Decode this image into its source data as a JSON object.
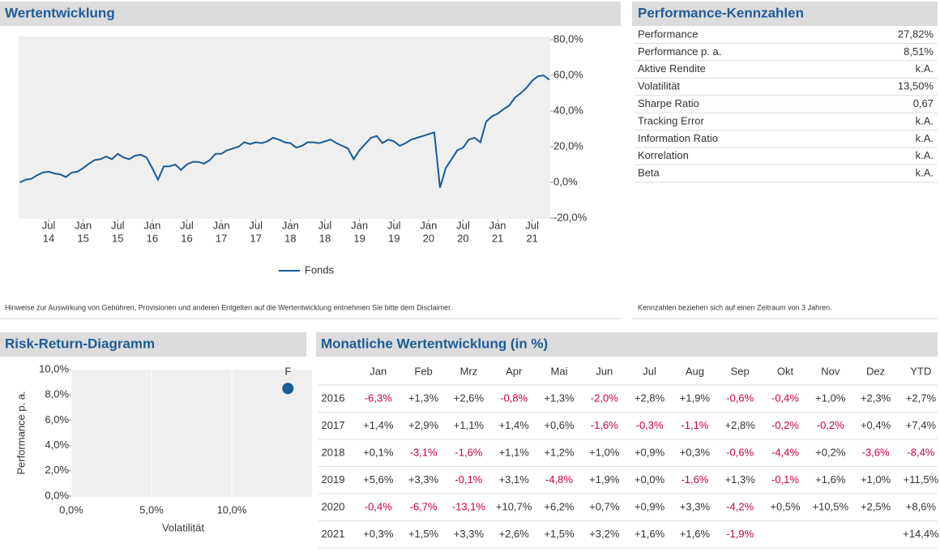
{
  "chart_data": [
    {
      "type": "line",
      "title": "Wertentwicklung",
      "x": [
        "2014-02",
        "2014-03",
        "2014-04",
        "2014-05",
        "2014-06",
        "2014-07",
        "2014-08",
        "2014-09",
        "2014-10",
        "2014-11",
        "2014-12",
        "2015-01",
        "2015-02",
        "2015-03",
        "2015-04",
        "2015-05",
        "2015-06",
        "2015-07",
        "2015-08",
        "2015-09",
        "2015-10",
        "2015-11",
        "2015-12",
        "2016-01",
        "2016-02",
        "2016-03",
        "2016-04",
        "2016-05",
        "2016-06",
        "2016-07",
        "2016-08",
        "2016-09",
        "2016-10",
        "2016-11",
        "2016-12",
        "2017-01",
        "2017-02",
        "2017-03",
        "2017-04",
        "2017-05",
        "2017-06",
        "2017-07",
        "2017-08",
        "2017-09",
        "2017-10",
        "2017-11",
        "2017-12",
        "2018-01",
        "2018-02",
        "2018-03",
        "2018-04",
        "2018-05",
        "2018-06",
        "2018-07",
        "2018-08",
        "2018-09",
        "2018-10",
        "2018-11",
        "2018-12",
        "2019-01",
        "2019-02",
        "2019-03",
        "2019-04",
        "2019-05",
        "2019-06",
        "2019-07",
        "2019-08",
        "2019-09",
        "2019-10",
        "2019-11",
        "2019-12",
        "2020-01",
        "2020-02",
        "2020-03",
        "2020-04",
        "2020-05",
        "2020-06",
        "2020-07",
        "2020-08",
        "2020-09",
        "2020-10",
        "2020-11",
        "2020-12",
        "2021-01",
        "2021-02",
        "2021-03",
        "2021-04",
        "2021-05",
        "2021-06",
        "2021-07",
        "2021-08",
        "2021-09",
        "2021-10"
      ],
      "series": [
        {
          "name": "Fonds",
          "color": "#1a5a96",
          "values": [
            0,
            1.5,
            2,
            4,
            5.5,
            6,
            5,
            4.5,
            3,
            5.5,
            6,
            8,
            10.5,
            12.5,
            13,
            14.5,
            13,
            16,
            14,
            13,
            15,
            15.5,
            14,
            8,
            1.5,
            9,
            9,
            10,
            7,
            10,
            11.5,
            11.5,
            10.5,
            12.5,
            16,
            16,
            18,
            19,
            20,
            22.5,
            21.5,
            22.5,
            22,
            23,
            25,
            24,
            22.5,
            22,
            19.5,
            20.5,
            22.5,
            22.5,
            22,
            23,
            24,
            22,
            20.5,
            19,
            13,
            18,
            21.5,
            25,
            26,
            22,
            24,
            23,
            20.5,
            22,
            24,
            25,
            26,
            27,
            28,
            -3,
            8,
            13,
            18,
            19.5,
            24,
            25,
            22.5,
            34,
            37,
            38.5,
            41,
            43,
            47.5,
            50,
            53,
            57,
            59.5,
            60,
            57.5
          ]
        }
      ],
      "xlim": [
        "2014-02",
        "2021-10"
      ],
      "xticks": [
        {
          "value": "2014-07",
          "label": [
            "Jul",
            "14"
          ]
        },
        {
          "value": "2015-01",
          "label": [
            "Jan",
            "15"
          ]
        },
        {
          "value": "2015-07",
          "label": [
            "Jul",
            "15"
          ]
        },
        {
          "value": "2016-01",
          "label": [
            "Jan",
            "16"
          ]
        },
        {
          "value": "2016-07",
          "label": [
            "Jul",
            "16"
          ]
        },
        {
          "value": "2017-01",
          "label": [
            "Jan",
            "17"
          ]
        },
        {
          "value": "2017-07",
          "label": [
            "Jul",
            "17"
          ]
        },
        {
          "value": "2018-01",
          "label": [
            "Jan",
            "18"
          ]
        },
        {
          "value": "2018-07",
          "label": [
            "Jul",
            "18"
          ]
        },
        {
          "value": "2019-01",
          "label": [
            "Jan",
            "19"
          ]
        },
        {
          "value": "2019-07",
          "label": [
            "Jul",
            "19"
          ]
        },
        {
          "value": "2020-01",
          "label": [
            "Jan",
            "20"
          ]
        },
        {
          "value": "2020-07",
          "label": [
            "Jul",
            "20"
          ]
        },
        {
          "value": "2021-01",
          "label": [
            "Jan",
            "21"
          ]
        },
        {
          "value": "2021-07",
          "label": [
            "Jul",
            "21"
          ]
        }
      ],
      "ylim": [
        -20,
        80
      ],
      "yticks": [
        {
          "value": -20,
          "label": "-20,0%"
        },
        {
          "value": 0,
          "label": "0,0%"
        },
        {
          "value": 20,
          "label": "20,0%"
        },
        {
          "value": 40,
          "label": "40,0%"
        },
        {
          "value": 60,
          "label": "60,0%"
        },
        {
          "value": 80,
          "label": "80,0%"
        }
      ],
      "legend": "bottom",
      "note": "Hinweise zur Auswirkung von Gebühren, Provisionen und anderen Entgelten auf die Wertentwicklung entnehmen Sie bitte dem Disclaimer."
    },
    {
      "type": "scatter",
      "title": "Risk-Return-Diagramm",
      "xlabel": "Volatilität",
      "ylabel": "Performance p. a.",
      "series": [
        {
          "name": "F",
          "color": "#1a5a96",
          "x": [
            13.5
          ],
          "values": [
            8.51
          ]
        }
      ],
      "xlim": [
        0,
        15
      ],
      "xticks": [
        {
          "value": 0,
          "label": "0,0%"
        },
        {
          "value": 5,
          "label": "5,0%"
        },
        {
          "value": 10,
          "label": "10,0%"
        }
      ],
      "ylim": [
        0,
        10
      ],
      "yticks": [
        {
          "value": 0,
          "label": "0,0%"
        },
        {
          "value": 2,
          "label": "2,0%"
        },
        {
          "value": 4,
          "label": "4,0%"
        },
        {
          "value": 6,
          "label": "6,0%"
        },
        {
          "value": 8,
          "label": "8,0%"
        },
        {
          "value": 10,
          "label": "10,0%"
        }
      ],
      "grid": true
    }
  ],
  "kennzahlen": {
    "title": "Performance-Kennzahlen",
    "rows": [
      [
        "Performance",
        "27,82%"
      ],
      [
        "Performance p. a.",
        "8,51%"
      ],
      [
        "Aktive Rendite",
        "k.A."
      ],
      [
        "Volatilität",
        "13,50%"
      ],
      [
        "Sharpe Ratio",
        "0,67"
      ],
      [
        "Tracking Error",
        "k.A."
      ],
      [
        "Information Ratio",
        "k.A."
      ],
      [
        "Korrelation",
        "k.A."
      ],
      [
        "Beta",
        "k.A."
      ]
    ],
    "note": "Kennzahlen beziehen sich auf einen Zeitraum von 3 Jahren."
  },
  "monatlich": {
    "title": "Monatliche Wertentwicklung (in %)",
    "negative_color": "#c8003c",
    "header": [
      "Jan",
      "Feb",
      "Mrz",
      "Apr",
      "Mai",
      "Jun",
      "Jul",
      "Aug",
      "Sep",
      "Okt",
      "Nov",
      "Dez",
      "YTD"
    ],
    "rows": [
      [
        "2016",
        "-6,3%",
        "+1,3%",
        "+2,6%",
        "-0,8%",
        "+1,3%",
        "-2,0%",
        "+2,8%",
        "+1,9%",
        "-0,6%",
        "-0,4%",
        "+1,0%",
        "+2,3%",
        "+2,7%"
      ],
      [
        "2017",
        "+1,4%",
        "+2,9%",
        "+1,1%",
        "+1,4%",
        "+0,6%",
        "-1,6%",
        "-0,3%",
        "-1,1%",
        "+2,8%",
        "-0,2%",
        "-0,2%",
        "+0,4%",
        "+7,4%"
      ],
      [
        "2018",
        "+0,1%",
        "-3,1%",
        "-1,6%",
        "+1,1%",
        "+1,2%",
        "+1,0%",
        "+0,9%",
        "+0,3%",
        "-0,6%",
        "-4,4%",
        "+0,2%",
        "-3,6%",
        "-8,4%"
      ],
      [
        "2019",
        "+5,6%",
        "+3,3%",
        "-0,1%",
        "+3,1%",
        "-4,8%",
        "+1,9%",
        "+0,0%",
        "-1,6%",
        "+1,3%",
        "-0,1%",
        "+1,6%",
        "+1,0%",
        "+11,5%"
      ],
      [
        "2020",
        "-0,4%",
        "-6,7%",
        "-13,1%",
        "+10,7%",
        "+6,2%",
        "+0,7%",
        "+0,9%",
        "+3,3%",
        "-4,2%",
        "+0,5%",
        "+10,5%",
        "+2,5%",
        "+8,6%"
      ],
      [
        "2021",
        "+0,3%",
        "+1,5%",
        "+3,3%",
        "+2,6%",
        "+1,5%",
        "+3,2%",
        "+1,6%",
        "+1,6%",
        "-1,9%",
        null,
        null,
        null,
        "+14,4%"
      ]
    ]
  }
}
